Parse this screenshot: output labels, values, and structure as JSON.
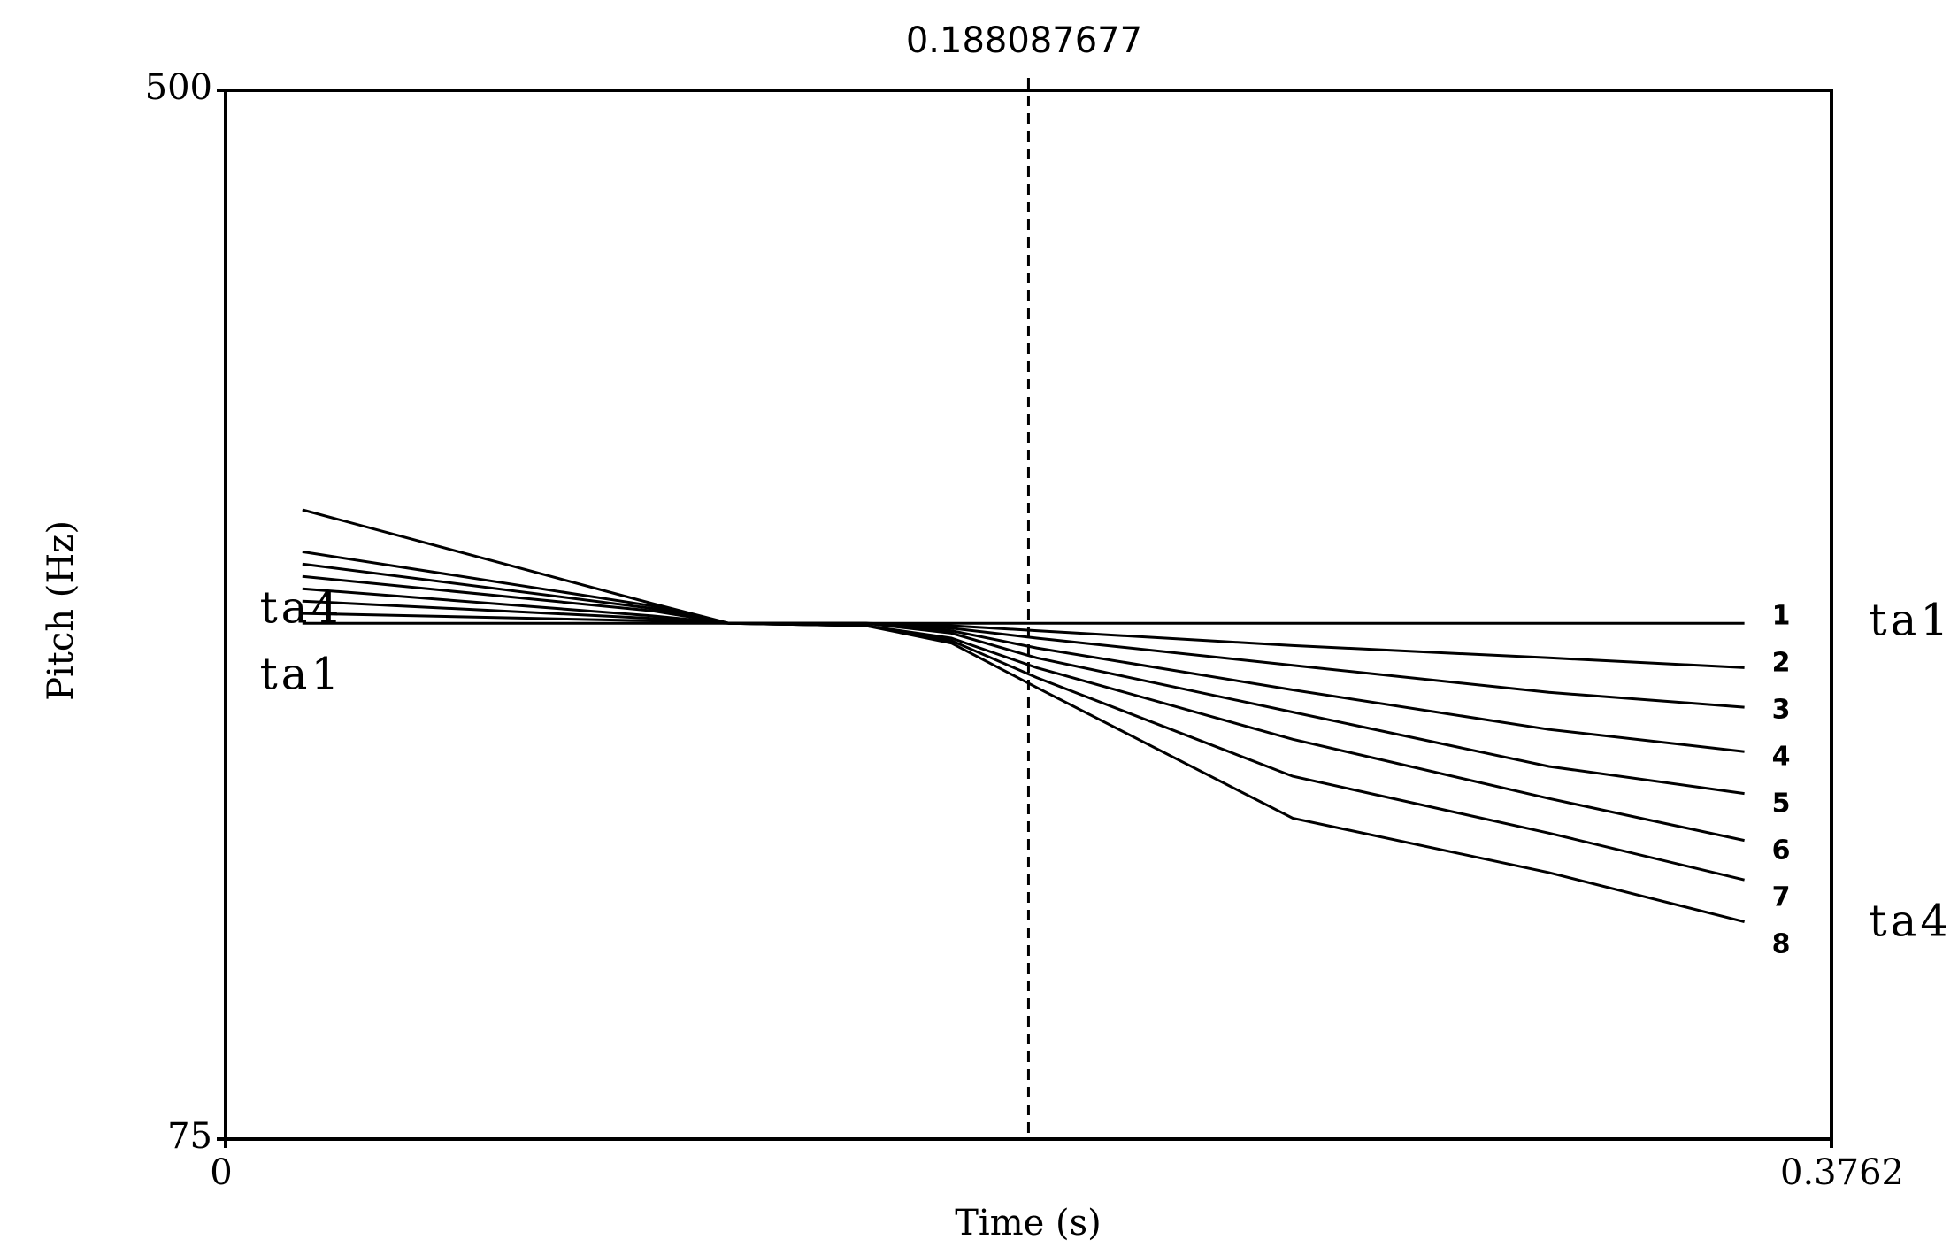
{
  "chart_data": {
    "type": "line",
    "title": "",
    "xlabel": "Time (s)",
    "ylabel": "Pitch (Hz)",
    "xlim": [
      0,
      0.3762
    ],
    "ylim": [
      75,
      500
    ],
    "x_tick_labels": [
      "0",
      "0.3762"
    ],
    "y_tick_labels": [
      "500",
      "75"
    ],
    "grid": false,
    "legend": "none",
    "cursor": {
      "x": 0.188087677,
      "label": "0.188087677"
    },
    "annotations": [
      {
        "text": "ta4",
        "x": 0.008,
        "y": 289
      },
      {
        "text": "ta1",
        "x": 0.008,
        "y": 262
      },
      {
        "text": "ta1",
        "x": 0.385,
        "y": 284
      },
      {
        "text": "ta4",
        "x": 0.385,
        "y": 162
      }
    ],
    "series": [
      {
        "name": "1",
        "x": [
          0.018,
          0.1,
          0.118,
          0.15,
          0.17,
          0.19,
          0.25,
          0.31,
          0.3558
        ],
        "y": [
          284,
          284,
          284,
          284,
          284,
          284,
          284,
          284,
          284
        ]
      },
      {
        "name": "2",
        "x": [
          0.018,
          0.1,
          0.118,
          0.15,
          0.17,
          0.19,
          0.25,
          0.31,
          0.3558
        ],
        "y": [
          288,
          285,
          284,
          284,
          283,
          281,
          275,
          270,
          266
        ]
      },
      {
        "name": "3",
        "x": [
          0.018,
          0.1,
          0.118,
          0.15,
          0.17,
          0.19,
          0.25,
          0.31,
          0.3558
        ],
        "y": [
          293,
          286,
          284,
          284,
          282,
          278,
          267,
          256,
          250
        ]
      },
      {
        "name": "4",
        "x": [
          0.018,
          0.1,
          0.118,
          0.15,
          0.17,
          0.19,
          0.25,
          0.31,
          0.3558
        ],
        "y": [
          298,
          287,
          284,
          284,
          281,
          274,
          257,
          241,
          232
        ]
      },
      {
        "name": "5",
        "x": [
          0.018,
          0.1,
          0.118,
          0.15,
          0.17,
          0.19,
          0.25,
          0.31,
          0.3558
        ],
        "y": [
          303,
          289,
          284,
          284,
          280,
          270,
          248,
          226,
          215
        ]
      },
      {
        "name": "6",
        "x": [
          0.018,
          0.1,
          0.118,
          0.15,
          0.17,
          0.19,
          0.25,
          0.31,
          0.3558
        ],
        "y": [
          308,
          290,
          284,
          283,
          278,
          266,
          237,
          213,
          196
        ]
      },
      {
        "name": "7",
        "x": [
          0.018,
          0.1,
          0.118,
          0.15,
          0.17,
          0.19,
          0.25,
          0.31,
          0.3558
        ],
        "y": [
          313,
          291,
          284,
          283,
          277,
          262,
          222,
          199,
          180
        ]
      },
      {
        "name": "8",
        "x": [
          0.018,
          0.1,
          0.118,
          0.15,
          0.17,
          0.19,
          0.25,
          0.31,
          0.3558
        ],
        "y": [
          330,
          292,
          284,
          283,
          276,
          258,
          205,
          183,
          163
        ]
      }
    ]
  },
  "colors": {
    "line": "#000000",
    "axis": "#000000",
    "background": "#ffffff"
  }
}
